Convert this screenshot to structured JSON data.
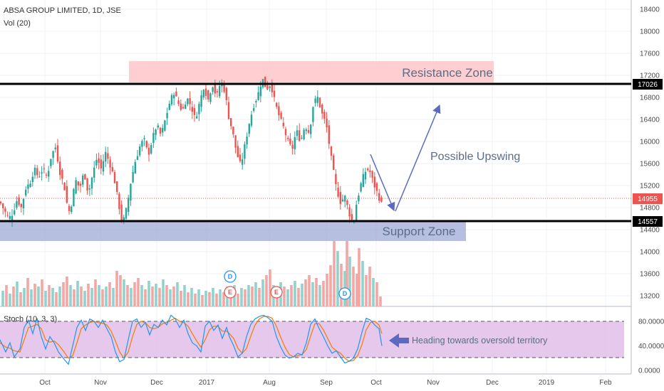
{
  "chart_data": {
    "type": "candlestick",
    "title": "ABSA GROUP LIMITED, 1D, JSE",
    "indicator_volume_label": "Vol (20)",
    "indicator_stoch_label": "Stoch (10, 3, 3)",
    "price_axis": {
      "ticks": [
        "18400",
        "18000",
        "17600",
        "17200",
        "16800",
        "16400",
        "16000",
        "15600",
        "15200",
        "14800",
        "14400",
        "14000",
        "13600",
        "13200"
      ],
      "range": [
        13000,
        18550
      ]
    },
    "stoch_axis": {
      "ticks": [
        "80.0000",
        "40.0000",
        "0.0000"
      ],
      "range": [
        -2,
        100
      ],
      "bands": [
        80,
        20
      ]
    },
    "time_axis": {
      "ticks": [
        "Oct",
        "Nov",
        "Dec",
        "2017",
        "Aug",
        "Sep",
        "Oct",
        "Nov",
        "Dec",
        "2019",
        "Feb"
      ]
    },
    "levels": [
      {
        "label": "17026",
        "value": 17026
      },
      {
        "label": "14557",
        "value": 14557
      }
    ],
    "last_price": {
      "label": "14955",
      "value": 14955
    },
    "zones": [
      {
        "label": "Resistance Zone",
        "from": 17020,
        "to": 17400,
        "color": "#ffc9cc"
      },
      {
        "label": "Support Zone",
        "from": 14180,
        "to": 14560,
        "color": "#9fa9d6"
      }
    ],
    "annotations": [
      {
        "label": "Possible Upswing"
      },
      {
        "label": "Heading towards oversold territory"
      }
    ],
    "event_badges": [
      "D",
      "E",
      "E",
      "D"
    ],
    "colors": {
      "up": "#26a69a",
      "down": "#ef5350",
      "stoch_k": "#2196f3",
      "stoch_d": "#f57c00",
      "stoch_band": "#e1bee7",
      "arrow": "#5c6bc0"
    },
    "price_path": [
      [
        0,
        14900
      ],
      [
        6,
        14750
      ],
      [
        12,
        14600
      ],
      [
        18,
        14700
      ],
      [
        24,
        14950
      ],
      [
        30,
        14800
      ],
      [
        36,
        15150
      ],
      [
        42,
        15250
      ],
      [
        48,
        15500
      ],
      [
        54,
        15350
      ],
      [
        60,
        15500
      ],
      [
        66,
        15350
      ],
      [
        72,
        15750
      ],
      [
        78,
        15900
      ],
      [
        84,
        15450
      ],
      [
        90,
        15200
      ],
      [
        96,
        14700
      ],
      [
        100,
        14850
      ],
      [
        106,
        15300
      ],
      [
        112,
        15150
      ],
      [
        118,
        15450
      ],
      [
        124,
        15050
      ],
      [
        130,
        15400
      ],
      [
        136,
        15700
      ],
      [
        142,
        15500
      ],
      [
        148,
        15800
      ],
      [
        154,
        15600
      ],
      [
        160,
        15350
      ],
      [
        166,
        14900
      ],
      [
        172,
        14500
      ],
      [
        178,
        14800
      ],
      [
        184,
        15300
      ],
      [
        190,
        15650
      ],
      [
        196,
        15900
      ],
      [
        202,
        16050
      ],
      [
        208,
        15750
      ],
      [
        214,
        16050
      ],
      [
        220,
        16300
      ],
      [
        226,
        16100
      ],
      [
        232,
        16400
      ],
      [
        238,
        16700
      ],
      [
        244,
        16900
      ],
      [
        250,
        16700
      ],
      [
        256,
        16550
      ],
      [
        262,
        16800
      ],
      [
        268,
        16650
      ],
      [
        274,
        16400
      ],
      [
        280,
        16700
      ],
      [
        286,
        17000
      ],
      [
        292,
        16750
      ],
      [
        298,
        17050
      ],
      [
        304,
        16800
      ],
      [
        310,
        17100
      ],
      [
        316,
        16900
      ],
      [
        320,
        16500
      ],
      [
        326,
        16200
      ],
      [
        332,
        15800
      ],
      [
        338,
        15550
      ],
      [
        344,
        15950
      ],
      [
        350,
        16350
      ],
      [
        356,
        16650
      ],
      [
        362,
        16850
      ],
      [
        368,
        17150
      ],
      [
        374,
        16950
      ],
      [
        380,
        17050
      ],
      [
        386,
        16700
      ],
      [
        392,
        16450
      ],
      [
        398,
        16250
      ],
      [
        404,
        16000
      ],
      [
        410,
        15850
      ],
      [
        416,
        16200
      ],
      [
        422,
        16000
      ],
      [
        428,
        16300
      ],
      [
        434,
        16150
      ],
      [
        440,
        16700
      ],
      [
        446,
        16800
      ],
      [
        452,
        16500
      ],
      [
        458,
        16300
      ],
      [
        462,
        15950
      ],
      [
        466,
        15600
      ],
      [
        472,
        15150
      ],
      [
        478,
        14900
      ],
      [
        484,
        15000
      ],
      [
        490,
        14700
      ],
      [
        496,
        14500
      ],
      [
        500,
        14850
      ],
      [
        506,
        15200
      ],
      [
        512,
        15450
      ],
      [
        518,
        15500
      ],
      [
        524,
        15250
      ],
      [
        530,
        15050
      ],
      [
        536,
        14850
      ]
    ],
    "volume_bars": [
      [
        4,
        22,
        1
      ],
      [
        9,
        30,
        0
      ],
      [
        14,
        18,
        1
      ],
      [
        19,
        28,
        0
      ],
      [
        24,
        35,
        1
      ],
      [
        29,
        20,
        0
      ],
      [
        34,
        26,
        1
      ],
      [
        39,
        40,
        0
      ],
      [
        44,
        24,
        1
      ],
      [
        49,
        32,
        0
      ],
      [
        54,
        28,
        1
      ],
      [
        59,
        38,
        0
      ],
      [
        64,
        22,
        1
      ],
      [
        69,
        30,
        0
      ],
      [
        74,
        26,
        1
      ],
      [
        79,
        20,
        0
      ],
      [
        84,
        28,
        1
      ],
      [
        89,
        34,
        0
      ],
      [
        94,
        42,
        0
      ],
      [
        99,
        30,
        1
      ],
      [
        104,
        24,
        0
      ],
      [
        109,
        36,
        1
      ],
      [
        114,
        28,
        0
      ],
      [
        119,
        22,
        1
      ],
      [
        124,
        32,
        0
      ],
      [
        129,
        26,
        1
      ],
      [
        134,
        38,
        0
      ],
      [
        139,
        30,
        1
      ],
      [
        144,
        24,
        0
      ],
      [
        149,
        28,
        1
      ],
      [
        154,
        34,
        0
      ],
      [
        159,
        26,
        1
      ],
      [
        164,
        50,
        0
      ],
      [
        169,
        44,
        0
      ],
      [
        174,
        38,
        1
      ],
      [
        179,
        30,
        0
      ],
      [
        184,
        26,
        1
      ],
      [
        189,
        34,
        0
      ],
      [
        194,
        40,
        0
      ],
      [
        199,
        30,
        1
      ],
      [
        204,
        24,
        0
      ],
      [
        209,
        36,
        1
      ],
      [
        214,
        28,
        0
      ],
      [
        219,
        32,
        1
      ],
      [
        224,
        26,
        0
      ],
      [
        229,
        38,
        1
      ],
      [
        234,
        30,
        0
      ],
      [
        239,
        24,
        1
      ],
      [
        244,
        28,
        0
      ],
      [
        249,
        34,
        1
      ],
      [
        254,
        22,
        0
      ],
      [
        259,
        30,
        1
      ],
      [
        264,
        20,
        0
      ],
      [
        269,
        26,
        1
      ],
      [
        274,
        18,
        0
      ],
      [
        279,
        24,
        1
      ],
      [
        284,
        16,
        0
      ],
      [
        289,
        22,
        1
      ],
      [
        294,
        20,
        0
      ],
      [
        299,
        26,
        1
      ],
      [
        304,
        18,
        0
      ],
      [
        309,
        24,
        1
      ],
      [
        314,
        20,
        0
      ],
      [
        319,
        28,
        1
      ],
      [
        324,
        22,
        0
      ],
      [
        329,
        30,
        1
      ],
      [
        334,
        18,
        0
      ],
      [
        339,
        26,
        1
      ],
      [
        344,
        24,
        0
      ],
      [
        349,
        30,
        1
      ],
      [
        354,
        28,
        0
      ],
      [
        359,
        34,
        1
      ],
      [
        364,
        26,
        0
      ],
      [
        369,
        38,
        1
      ],
      [
        374,
        44,
        0
      ],
      [
        379,
        52,
        0
      ],
      [
        384,
        30,
        1
      ],
      [
        389,
        26,
        0
      ],
      [
        394,
        34,
        1
      ],
      [
        399,
        28,
        0
      ],
      [
        404,
        24,
        1
      ],
      [
        409,
        30,
        0
      ],
      [
        414,
        36,
        1
      ],
      [
        419,
        26,
        0
      ],
      [
        424,
        32,
        1
      ],
      [
        429,
        38,
        0
      ],
      [
        434,
        44,
        0
      ],
      [
        439,
        34,
        1
      ],
      [
        444,
        40,
        0
      ],
      [
        449,
        30,
        1
      ],
      [
        454,
        36,
        0
      ],
      [
        459,
        46,
        0
      ],
      [
        464,
        58,
        0
      ],
      [
        469,
        92,
        0
      ],
      [
        474,
        78,
        1
      ],
      [
        479,
        60,
        0
      ],
      [
        484,
        50,
        1
      ],
      [
        487,
        92,
        0
      ],
      [
        491,
        70,
        1
      ],
      [
        496,
        56,
        0
      ],
      [
        501,
        46,
        0
      ],
      [
        504,
        82,
        0
      ],
      [
        509,
        64,
        1
      ],
      [
        514,
        44,
        0
      ],
      [
        519,
        56,
        0
      ],
      [
        524,
        40,
        1
      ],
      [
        529,
        34,
        0
      ],
      [
        534,
        14,
        0
      ]
    ],
    "stoch_k": [
      [
        0,
        50
      ],
      [
        8,
        30
      ],
      [
        14,
        45
      ],
      [
        20,
        22
      ],
      [
        28,
        35
      ],
      [
        34,
        70
      ],
      [
        40,
        82
      ],
      [
        46,
        60
      ],
      [
        52,
        85
      ],
      [
        58,
        55
      ],
      [
        64,
        35
      ],
      [
        70,
        55
      ],
      [
        76,
        45
      ],
      [
        82,
        30
      ],
      [
        90,
        18
      ],
      [
        96,
        10
      ],
      [
        102,
        40
      ],
      [
        108,
        70
      ],
      [
        114,
        82
      ],
      [
        120,
        65
      ],
      [
        126,
        84
      ],
      [
        132,
        80
      ],
      [
        138,
        70
      ],
      [
        144,
        82
      ],
      [
        150,
        68
      ],
      [
        156,
        55
      ],
      [
        162,
        30
      ],
      [
        168,
        14
      ],
      [
        174,
        18
      ],
      [
        180,
        50
      ],
      [
        186,
        80
      ],
      [
        192,
        84
      ],
      [
        198,
        70
      ],
      [
        204,
        78
      ],
      [
        210,
        58
      ],
      [
        216,
        75
      ],
      [
        222,
        70
      ],
      [
        228,
        82
      ],
      [
        234,
        74
      ],
      [
        240,
        90
      ],
      [
        246,
        84
      ],
      [
        252,
        70
      ],
      [
        258,
        82
      ],
      [
        264,
        60
      ],
      [
        270,
        45
      ],
      [
        276,
        40
      ],
      [
        282,
        30
      ],
      [
        288,
        72
      ],
      [
        294,
        80
      ],
      [
        300,
        65
      ],
      [
        306,
        74
      ],
      [
        312,
        52
      ],
      [
        318,
        70
      ],
      [
        322,
        55
      ],
      [
        328,
        40
      ],
      [
        334,
        22
      ],
      [
        340,
        28
      ],
      [
        346,
        55
      ],
      [
        352,
        75
      ],
      [
        358,
        84
      ],
      [
        364,
        88
      ],
      [
        370,
        90
      ],
      [
        376,
        86
      ],
      [
        382,
        80
      ],
      [
        388,
        55
      ],
      [
        394,
        38
      ],
      [
        400,
        25
      ],
      [
        406,
        20
      ],
      [
        412,
        22
      ],
      [
        418,
        28
      ],
      [
        424,
        25
      ],
      [
        430,
        45
      ],
      [
        436,
        75
      ],
      [
        442,
        84
      ],
      [
        448,
        68
      ],
      [
        454,
        55
      ],
      [
        460,
        40
      ],
      [
        466,
        28
      ],
      [
        472,
        32
      ],
      [
        478,
        22
      ],
      [
        484,
        12
      ],
      [
        490,
        15
      ],
      [
        496,
        20
      ],
      [
        502,
        35
      ],
      [
        508,
        62
      ],
      [
        514,
        85
      ],
      [
        520,
        82
      ],
      [
        526,
        74
      ],
      [
        532,
        68
      ],
      [
        536,
        40
      ]
    ],
    "stoch_d": [
      [
        0,
        45
      ],
      [
        8,
        38
      ],
      [
        14,
        36
      ],
      [
        20,
        32
      ],
      [
        28,
        30
      ],
      [
        34,
        50
      ],
      [
        40,
        70
      ],
      [
        46,
        72
      ],
      [
        52,
        75
      ],
      [
        58,
        68
      ],
      [
        64,
        50
      ],
      [
        70,
        46
      ],
      [
        76,
        48
      ],
      [
        82,
        42
      ],
      [
        90,
        30
      ],
      [
        96,
        20
      ],
      [
        102,
        24
      ],
      [
        108,
        45
      ],
      [
        114,
        68
      ],
      [
        120,
        74
      ],
      [
        126,
        78
      ],
      [
        132,
        80
      ],
      [
        138,
        78
      ],
      [
        144,
        77
      ],
      [
        150,
        74
      ],
      [
        156,
        64
      ],
      [
        162,
        48
      ],
      [
        168,
        30
      ],
      [
        174,
        20
      ],
      [
        180,
        30
      ],
      [
        186,
        55
      ],
      [
        192,
        75
      ],
      [
        198,
        80
      ],
      [
        204,
        78
      ],
      [
        210,
        70
      ],
      [
        216,
        68
      ],
      [
        222,
        70
      ],
      [
        228,
        76
      ],
      [
        234,
        78
      ],
      [
        240,
        82
      ],
      [
        246,
        85
      ],
      [
        252,
        80
      ],
      [
        258,
        78
      ],
      [
        264,
        72
      ],
      [
        270,
        60
      ],
      [
        276,
        48
      ],
      [
        282,
        38
      ],
      [
        288,
        50
      ],
      [
        294,
        66
      ],
      [
        300,
        72
      ],
      [
        306,
        72
      ],
      [
        312,
        64
      ],
      [
        318,
        64
      ],
      [
        322,
        60
      ],
      [
        328,
        52
      ],
      [
        334,
        36
      ],
      [
        340,
        28
      ],
      [
        346,
        36
      ],
      [
        352,
        56
      ],
      [
        358,
        74
      ],
      [
        364,
        84
      ],
      [
        370,
        88
      ],
      [
        376,
        88
      ],
      [
        382,
        85
      ],
      [
        388,
        72
      ],
      [
        394,
        54
      ],
      [
        400,
        38
      ],
      [
        406,
        26
      ],
      [
        412,
        22
      ],
      [
        418,
        24
      ],
      [
        424,
        26
      ],
      [
        430,
        34
      ],
      [
        436,
        56
      ],
      [
        442,
        76
      ],
      [
        448,
        76
      ],
      [
        454,
        66
      ],
      [
        460,
        52
      ],
      [
        466,
        38
      ],
      [
        472,
        32
      ],
      [
        478,
        28
      ],
      [
        484,
        20
      ],
      [
        490,
        15
      ],
      [
        496,
        16
      ],
      [
        502,
        24
      ],
      [
        508,
        42
      ],
      [
        514,
        66
      ],
      [
        520,
        78
      ],
      [
        526,
        80
      ],
      [
        532,
        74
      ],
      [
        536,
        60
      ]
    ]
  }
}
